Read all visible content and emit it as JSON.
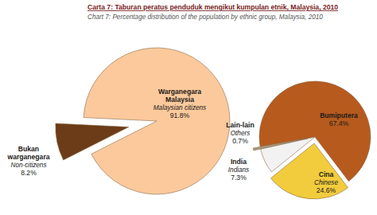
{
  "chart_data": [
    {
      "type": "pie",
      "title": "Carta 7: Taburan peratus penduduk mengikut kumpulan etnik, Malaysia, 2010",
      "subtitle": "Chart 7: Percentage distribution of the population by ethnic group, Malaysia, 2010",
      "categories": [
        "Warganegara Malaysia",
        "Bukan warganegara"
      ],
      "translations": [
        "Malaysian citizens",
        "Non-citizens"
      ],
      "values": [
        91.8,
        8.2
      ],
      "value_labels": [
        "91.8%",
        "8.2%"
      ],
      "colors": [
        "#fbc99b",
        "#6b3c17"
      ],
      "data_labels": true
    },
    {
      "type": "pie",
      "categories": [
        "Bumiputera",
        "Cina",
        "India",
        "Lain-lain"
      ],
      "translations": [
        null,
        "Chinese",
        "Indians",
        "Others"
      ],
      "values": [
        67.4,
        24.6,
        7.3,
        0.7
      ],
      "value_labels": [
        "67.4%",
        "24.6%",
        "7.3%",
        "0.7%"
      ],
      "colors": [
        "#b65a1e",
        "#f2cc3c",
        "#f2f2f2",
        "#a79d7c"
      ],
      "data_labels": true
    }
  ]
}
